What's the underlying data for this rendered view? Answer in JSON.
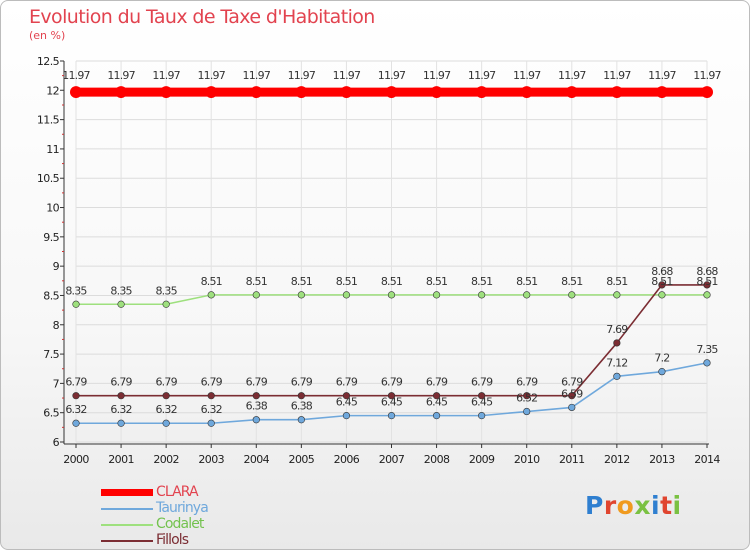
{
  "chart_data": {
    "type": "line",
    "title": "Evolution du Taux de Taxe d'Habitation",
    "subtitle": "(en %)",
    "categories": [
      "2000",
      "2001",
      "2002",
      "2003",
      "2004",
      "2005",
      "2006",
      "2007",
      "2008",
      "2009",
      "2010",
      "2011",
      "2012",
      "2013",
      "2014"
    ],
    "ylim": [
      6,
      12.5
    ],
    "yticks": [
      "6",
      "6.5",
      "7",
      "7.5",
      "8",
      "8.5",
      "9",
      "9.5",
      "10",
      "10.5",
      "11",
      "11.5",
      "12",
      "12.5"
    ],
    "series": [
      {
        "name": "CLARA",
        "color": "#ff0000",
        "values": [
          11.97,
          11.97,
          11.97,
          11.97,
          11.97,
          11.97,
          11.97,
          11.97,
          11.97,
          11.97,
          11.97,
          11.97,
          11.97,
          11.97,
          11.97
        ],
        "labels": [
          "11.97",
          "11.97",
          "11.97",
          "11.97",
          "11.97",
          "11.97",
          "11.97",
          "11.97",
          "11.97",
          "11.97",
          "11.97",
          "11.97",
          "11.97",
          "11.97",
          "11.97"
        ]
      },
      {
        "name": "Taurinya",
        "color": "#6fa8dc",
        "values": [
          6.32,
          6.32,
          6.32,
          6.32,
          6.38,
          6.38,
          6.45,
          6.45,
          6.45,
          6.45,
          6.52,
          6.59,
          7.12,
          7.2,
          7.35
        ],
        "labels": [
          "6.32",
          "6.32",
          "6.32",
          "6.32",
          "6.38",
          "6.38",
          "6.45",
          "6.45",
          "6.45",
          "6.45",
          "6.52",
          "6.59",
          "7.12",
          "7.2",
          "7.35"
        ]
      },
      {
        "name": "Codalet",
        "color": "#9ee07e",
        "values": [
          8.35,
          8.35,
          8.35,
          8.51,
          8.51,
          8.51,
          8.51,
          8.51,
          8.51,
          8.51,
          8.51,
          8.51,
          8.51,
          8.51,
          8.51
        ],
        "labels": [
          "8.35",
          "8.35",
          "8.35",
          "8.51",
          "8.51",
          "8.51",
          "8.51",
          "8.51",
          "8.51",
          "8.51",
          "8.51",
          "8.51",
          "8.51",
          "8.51",
          "8.51"
        ]
      },
      {
        "name": "Fillols",
        "color": "#7b2d33",
        "values": [
          6.79,
          6.79,
          6.79,
          6.79,
          6.79,
          6.79,
          6.79,
          6.79,
          6.79,
          6.79,
          6.79,
          6.79,
          7.69,
          8.68,
          8.68
        ],
        "labels": [
          "6.79",
          "6.79",
          "6.79",
          "6.79",
          "6.79",
          "6.79",
          "6.79",
          "6.79",
          "6.79",
          "6.79",
          "6.79",
          "6.79",
          "7.69",
          "8.68",
          "8.68"
        ]
      }
    ]
  },
  "legend": {
    "items": [
      {
        "label": "CLARA",
        "color": "#ff0000"
      },
      {
        "label": "Taurinya",
        "color": "#6fa8dc"
      },
      {
        "label": "Codalet",
        "color": "#9ee07e"
      },
      {
        "label": "Fillols",
        "color": "#7b2d33"
      }
    ]
  },
  "logo": {
    "text": "Proxiti"
  }
}
